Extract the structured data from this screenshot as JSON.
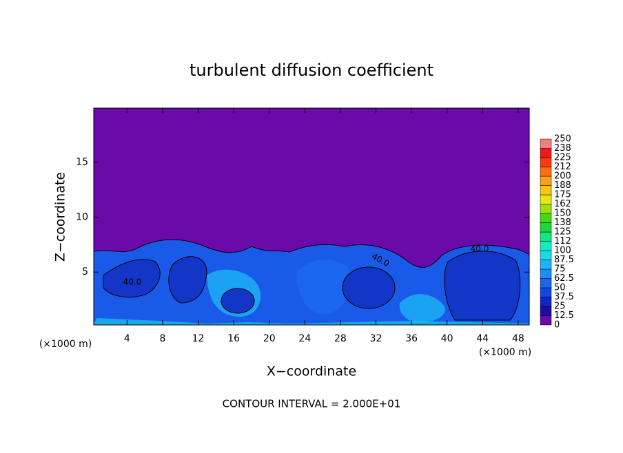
{
  "chart_data": {
    "type": "contour",
    "title": "turbulent diffusion coefficient",
    "xlabel": "X−coordinate",
    "ylabel": "Z−coordinate",
    "x_unit": "(×1000 m)",
    "x_unit_right": "(×1000 m)",
    "annotation": "CONTOUR INTERVAL = 2.000E+01",
    "xlim": [
      0.25,
      49.25
    ],
    "ylim": [
      0.2,
      19.9
    ],
    "xticks": [
      4,
      8,
      12,
      16,
      20,
      24,
      28,
      32,
      36,
      40,
      44,
      48
    ],
    "yticks": [
      5,
      10,
      15
    ],
    "contour_labels": [
      "40.0",
      "40.0",
      "40.0"
    ],
    "colorbar": {
      "levels": [
        0,
        12.5,
        25,
        37.5,
        50,
        62.5,
        75,
        87.5,
        100,
        112,
        125,
        138,
        150,
        162,
        175,
        188,
        200,
        212,
        225,
        238,
        250
      ],
      "colors": [
        "#6a0aa8",
        "#1e0c9a",
        "#1224c8",
        "#1446e0",
        "#1a66f0",
        "#1e8cf6",
        "#1cb4f4",
        "#18dcea",
        "#12ecc0",
        "#10e880",
        "#18d83c",
        "#40dc10",
        "#a0e010",
        "#e8e810",
        "#f8c810",
        "#f8a010",
        "#f87010",
        "#f83c10",
        "#f01818",
        "#f08080"
      ]
    }
  }
}
